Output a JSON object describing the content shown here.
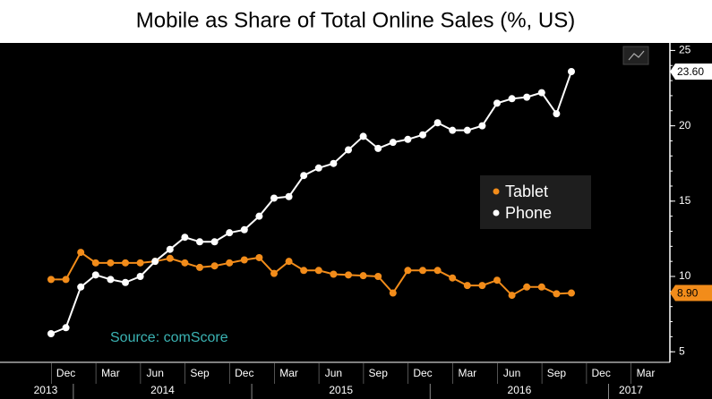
{
  "chart_data": {
    "type": "line",
    "title": "Mobile as Share of Total Online Sales (%, US)",
    "source": "Source: comScore",
    "categories": [
      null,
      "Dec",
      null,
      null,
      "Mar",
      null,
      null,
      "Jun",
      null,
      null,
      "Sep",
      null,
      null,
      "Dec",
      null,
      null,
      "Mar",
      null,
      null,
      "Jun",
      null,
      null,
      "Sep",
      null,
      null,
      "Dec",
      null,
      null,
      "Mar",
      null,
      null,
      "Jun",
      null,
      null,
      "Sep",
      null,
      null,
      "Dec",
      null,
      null,
      "Mar"
    ],
    "years": [
      "2013",
      "2014",
      "2015",
      "2016",
      "2017"
    ],
    "series": [
      {
        "name": "Tablet",
        "color": "#f28c1a",
        "values": [
          9.8,
          9.8,
          11.6,
          10.9,
          10.9,
          10.9,
          10.9,
          11.0,
          11.2,
          10.9,
          10.6,
          10.7,
          10.9,
          11.1,
          11.25,
          10.2,
          11.0,
          10.4,
          10.4,
          10.15,
          10.1,
          10.05,
          10.0,
          8.9,
          10.4,
          10.4,
          10.4,
          9.9,
          9.4,
          9.4,
          9.75,
          8.75,
          9.3,
          9.3,
          8.85,
          8.9,
          null,
          null,
          null,
          null,
          null
        ],
        "value_labels": [
          null,
          null,
          null,
          null,
          null,
          null,
          null,
          null,
          null,
          null,
          null,
          null,
          null,
          null,
          null,
          null,
          null,
          null,
          null,
          null,
          null,
          null,
          null,
          null,
          null,
          null,
          null,
          null,
          null,
          null,
          null,
          null,
          null,
          null,
          null,
          "8.90",
          null,
          null,
          null,
          null,
          null
        ]
      },
      {
        "name": "Phone",
        "color": "#ffffff",
        "values": [
          6.2,
          6.6,
          9.3,
          10.1,
          9.8,
          9.6,
          10.0,
          11.0,
          11.8,
          12.6,
          12.3,
          12.3,
          12.9,
          13.1,
          14.0,
          15.2,
          15.3,
          16.7,
          17.2,
          17.5,
          18.4,
          19.3,
          18.5,
          18.9,
          19.1,
          19.4,
          20.2,
          19.7,
          19.7,
          20.0,
          21.5,
          21.8,
          21.9,
          22.2,
          20.8,
          23.6,
          null,
          null,
          null,
          null,
          null
        ],
        "value_labels": [
          null,
          null,
          null,
          null,
          null,
          null,
          null,
          null,
          null,
          null,
          null,
          null,
          null,
          null,
          null,
          null,
          null,
          null,
          null,
          null,
          null,
          null,
          null,
          null,
          null,
          null,
          null,
          null,
          null,
          null,
          null,
          null,
          null,
          null,
          null,
          "23.60",
          null,
          null,
          null,
          null,
          null
        ]
      }
    ],
    "ylim": [
      4.3,
      25.5
    ],
    "yticks": [
      5,
      10,
      15,
      20,
      25
    ],
    "y_axis_side": "right",
    "grid": false,
    "legend": "right-center"
  }
}
